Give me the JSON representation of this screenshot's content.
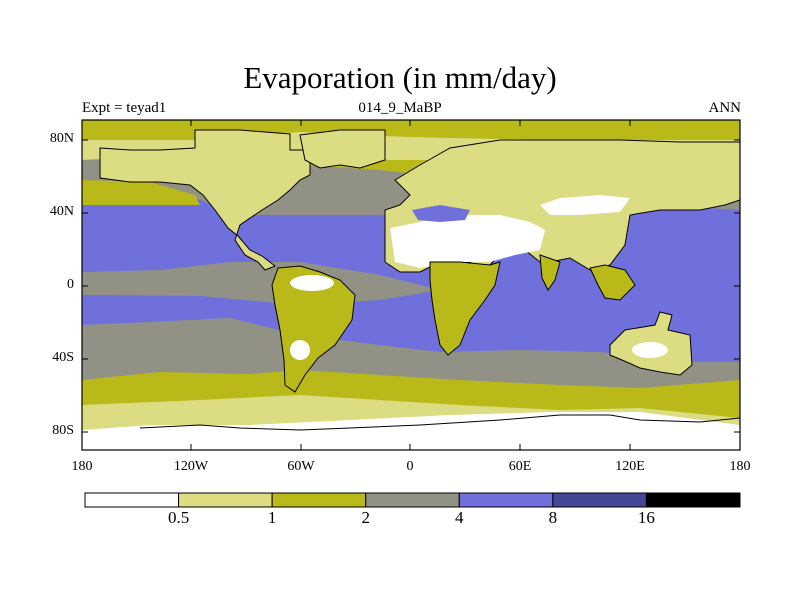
{
  "title": "Evaporation (in mm/day)",
  "left_label": "Expt = teyad1",
  "center_label": "014_9_MaBP",
  "right_label": "ANN",
  "map": {
    "lon_ticks": [
      "180",
      "120W",
      "60W",
      "0",
      "60E",
      "120E",
      "180"
    ],
    "lat_ticks": [
      "80N",
      "40N",
      "0",
      "40S",
      "80S"
    ],
    "colors": {
      "lt0.5": "#ffffff",
      "0.5-1": "#dcdc82",
      "1-2": "#b9b919",
      "2-4": "#919185",
      "4-8": "#7070dc",
      "8-16": "#464696",
      "gt16": "#000000"
    }
  },
  "colorbar": {
    "labels": [
      "0.5",
      "1",
      "2",
      "4",
      "8",
      "16"
    ],
    "colors": [
      "#ffffff",
      "#dcdc82",
      "#b9b919",
      "#919185",
      "#7070dc",
      "#464696",
      "#000000"
    ]
  }
}
